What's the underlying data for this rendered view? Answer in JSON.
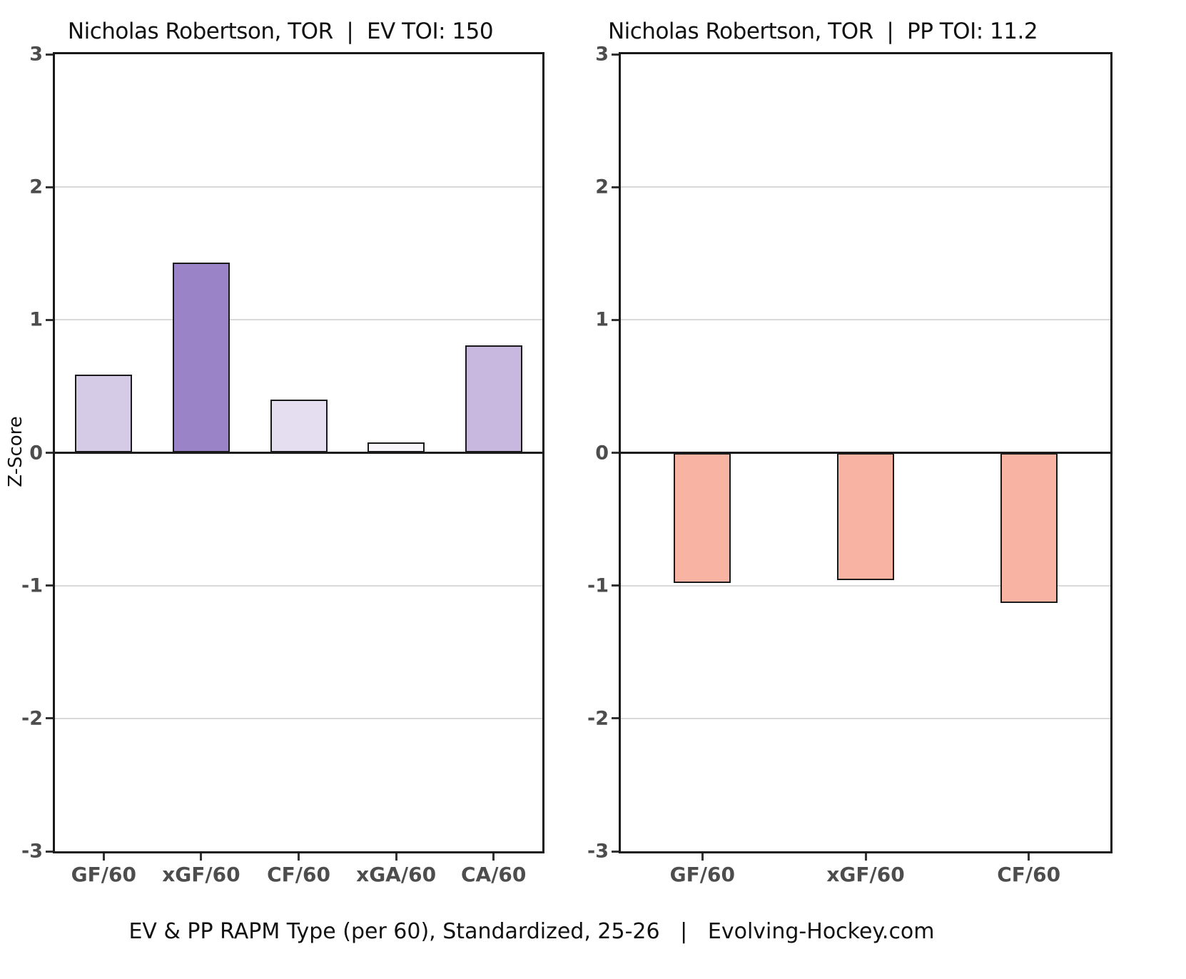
{
  "figure": {
    "footer": "EV & PP RAPM Type (per 60), Standardized, 25-26   |   Evolving-Hockey.com"
  },
  "colors": {
    "background": "#ffffff",
    "axis": "#1a1a1a",
    "grid": "#d9d9d9",
    "tick_label": "#4d4d4d",
    "title_text": "#111111",
    "pp_bar": "#f8b3a2"
  },
  "chart_data": [
    {
      "type": "bar",
      "title": "Nicholas Robertson, TOR  |  EV TOI: 150",
      "ylabel": "Z-Score",
      "xlabel": "",
      "ylim": [
        -3,
        3
      ],
      "yticks": [
        3,
        2,
        1,
        0,
        -1,
        -2,
        -3
      ],
      "grid": "horizontal",
      "legend": "none",
      "categories": [
        "GF/60",
        "xGF/60",
        "CF/60",
        "xGA/60",
        "CA/60"
      ],
      "values": [
        0.59,
        1.43,
        0.4,
        0.08,
        0.81
      ],
      "bar_colors": [
        "#d5cbe6",
        "#9a83c7",
        "#e4def0",
        "#f7f4fa",
        "#c8b8df"
      ]
    },
    {
      "type": "bar",
      "title": "Nicholas Robertson, TOR  |  PP TOI: 11.2",
      "ylabel": "",
      "xlabel": "",
      "ylim": [
        -3,
        3
      ],
      "yticks": [
        3,
        2,
        1,
        0,
        -1,
        -2,
        -3
      ],
      "grid": "horizontal",
      "legend": "none",
      "categories": [
        "GF/60",
        "xGF/60",
        "CF/60"
      ],
      "values": [
        -0.98,
        -0.96,
        -1.13
      ],
      "bar_colors": [
        "#f8b3a2",
        "#f8b3a2",
        "#f8b3a2"
      ]
    }
  ]
}
